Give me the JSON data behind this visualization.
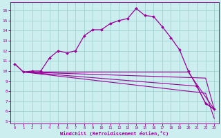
{
  "xlabel": "Windchill (Refroidissement éolien,°C)",
  "background_color": "#cceeee",
  "grid_color": "#99cccc",
  "line_color": "#990099",
  "xlim": [
    -0.5,
    23.5
  ],
  "ylim": [
    4.8,
    16.8
  ],
  "yticks": [
    5,
    6,
    7,
    8,
    9,
    10,
    11,
    12,
    13,
    14,
    15,
    16
  ],
  "xticks": [
    0,
    1,
    2,
    3,
    4,
    5,
    6,
    7,
    8,
    9,
    10,
    11,
    12,
    13,
    14,
    15,
    16,
    17,
    18,
    19,
    20,
    21,
    22,
    23
  ],
  "line1_x": [
    0,
    1,
    2,
    3,
    4,
    5,
    6,
    7,
    8,
    9,
    10,
    11,
    12,
    13,
    14,
    15,
    16,
    17,
    18,
    19,
    20,
    21,
    22,
    23
  ],
  "line1_y": [
    10.7,
    9.9,
    10.0,
    10.0,
    11.3,
    12.0,
    11.8,
    12.0,
    13.5,
    14.1,
    14.1,
    14.7,
    15.0,
    15.2,
    16.2,
    15.5,
    15.4,
    14.4,
    13.3,
    12.1,
    10.0,
    8.5,
    6.8,
    6.2
  ],
  "line2_x": [
    0,
    1,
    20,
    23
  ],
  "line2_y": [
    10.7,
    9.9,
    9.9,
    6.2
  ],
  "line3_x": [
    1,
    21,
    22,
    23
  ],
  "line3_y": [
    9.9,
    8.5,
    6.8,
    6.2
  ],
  "line4_x": [
    1,
    22,
    23
  ],
  "line4_y": [
    9.9,
    9.3,
    6.2
  ],
  "line5_x": [
    1,
    22,
    23
  ],
  "line5_y": [
    9.9,
    7.8,
    5.3
  ]
}
